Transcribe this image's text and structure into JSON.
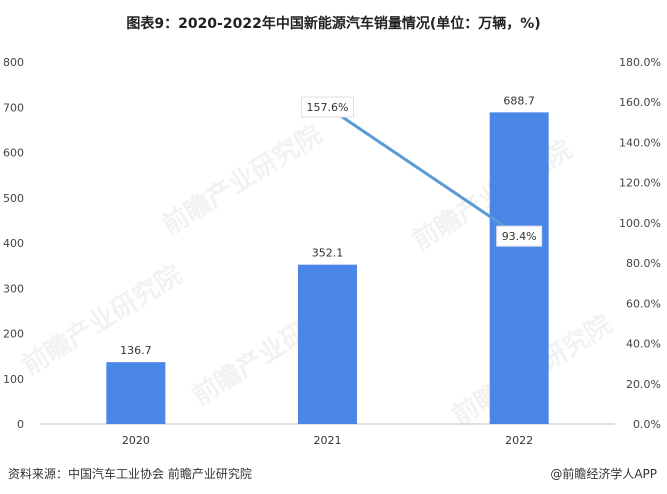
{
  "title": "图表9：2020-2022年中国新能源汽车销量情况(单位：万辆，%)",
  "watermark": "前瞻产业研究院",
  "source": "资料来源：中国汽车工业协会 前瞻产业研究院",
  "credit": "@前瞻经济学人APP",
  "colors": {
    "bar": "#4a86e8",
    "line": "#5b9bd5",
    "axis": "#bfbfbf"
  },
  "chart_data": {
    "type": "bar",
    "categories": [
      "2020",
      "2021",
      "2022"
    ],
    "series": [
      {
        "values": [
          136.7,
          352.1,
          688.7
        ],
        "labels": [
          "136.7",
          "352.1",
          "688.7"
        ]
      },
      {
        "type": "line",
        "axis": "right",
        "values": [
          null,
          157.6,
          93.4
        ],
        "labels": [
          "",
          "157.6%",
          "93.4%"
        ]
      }
    ],
    "y_left": {
      "min": 0,
      "max": 800,
      "ticks": [
        "0",
        "100",
        "200",
        "300",
        "400",
        "500",
        "600",
        "700",
        "800"
      ]
    },
    "y_right": {
      "min": 0,
      "max": 180,
      "ticks": [
        "0.0%",
        "20.0%",
        "40.0%",
        "60.0%",
        "80.0%",
        "100.0%",
        "120.0%",
        "140.0%",
        "160.0%",
        "180.0%"
      ]
    }
  }
}
